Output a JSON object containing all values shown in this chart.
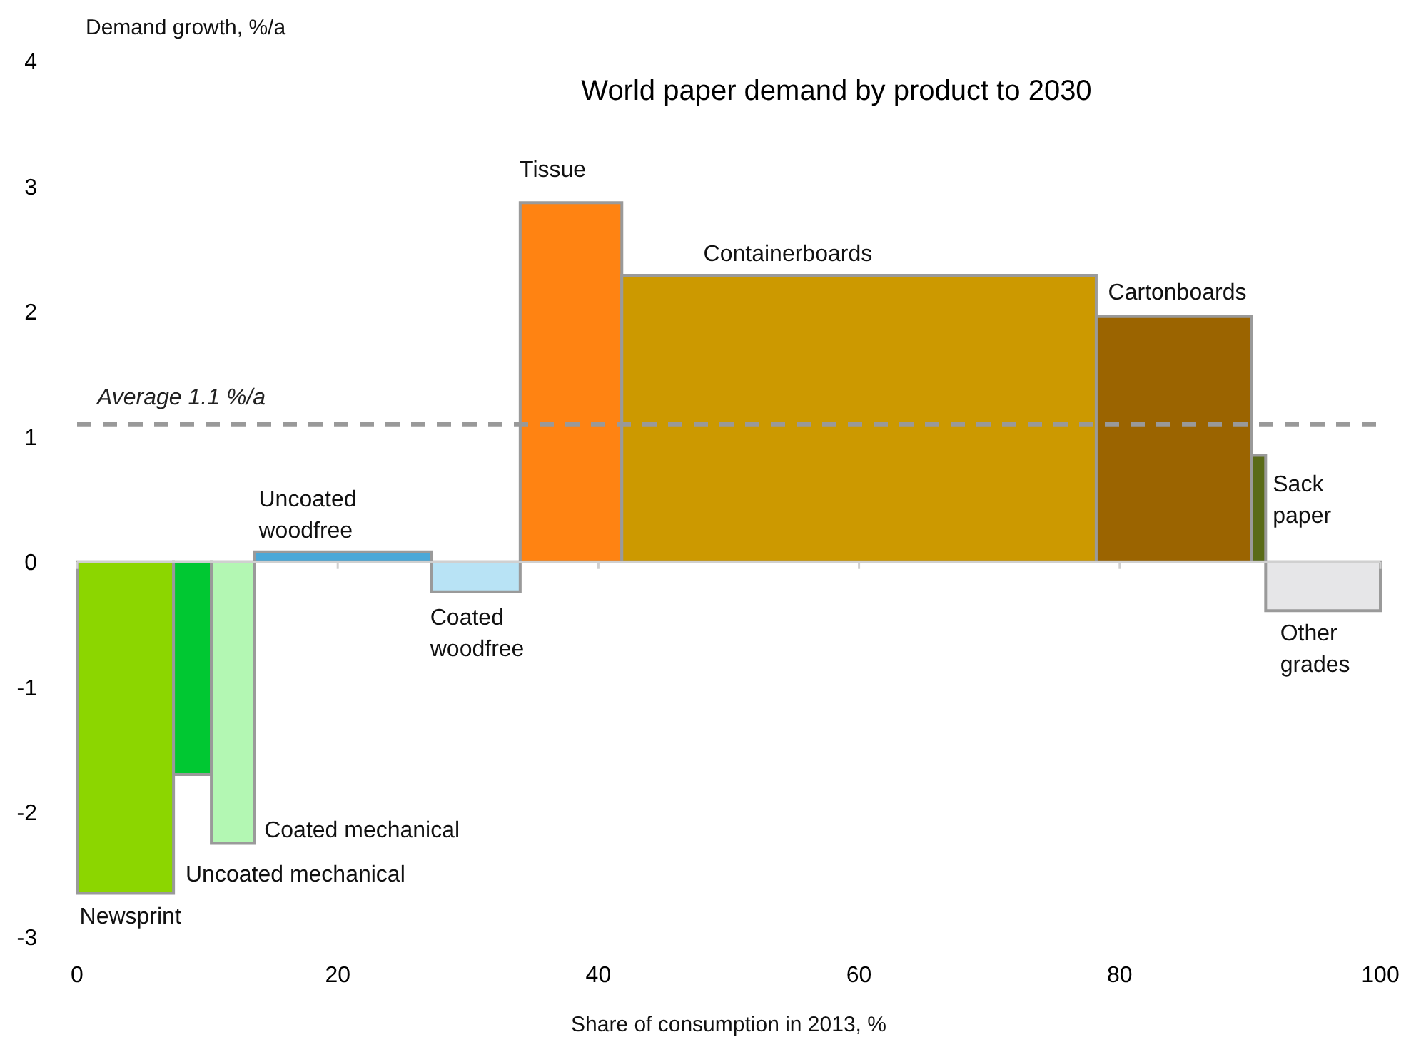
{
  "chart_data": {
    "type": "histogram",
    "title": "World paper demand by product to 2030",
    "xlabel": "Share of consumption in 2013, %",
    "ylabel": "Demand growth, %/a",
    "bins": [
      0,
      7.4,
      10.3,
      13.6,
      27.2,
      34.0,
      41.8,
      78.2,
      90.1,
      91.2,
      100
    ],
    "values": [
      -2.65,
      -1.7,
      -2.25,
      0.08,
      -0.24,
      2.87,
      2.29,
      1.96,
      0.85,
      -0.39
    ],
    "colors": [
      "#8cd600",
      "#00c832",
      "#b3f7b3",
      "#4aa8d8",
      "#b8e3f5",
      "#ff8312",
      "#cc9900",
      "#9b6400",
      "#5a6b18",
      "#e6e6e8"
    ],
    "xlim": [
      0,
      100
    ],
    "xticks": [
      0,
      20,
      40,
      60,
      80,
      100
    ],
    "ylim": [
      -3,
      4
    ],
    "yticks": [
      -3,
      -2,
      -1,
      0,
      1,
      2,
      3,
      4
    ],
    "ref_lines": [
      {
        "axis": "y",
        "value": 1.1,
        "label": "Average 1.1 %/a",
        "color": "#999999",
        "line_style": "dashed"
      }
    ],
    "annotations": [
      {
        "text": "Newsprint",
        "x": 3.7,
        "y": -2.65
      },
      "Uncoated mechanical",
      {
        "text": "Coated mechanical",
        "x": 11.95,
        "y": -2.25
      },
      {
        "text": "Uncoated\nwoodfree",
        "x": 20.4,
        "y": 0.08
      },
      {
        "text": "Coated\nwoodfree",
        "x": 30.6,
        "y": -0.24
      },
      {
        "text": "Tissue",
        "x": 37.9,
        "y": 2.87
      },
      {
        "text": "Containerboards",
        "x": 60,
        "y": 2.29
      },
      {
        "text": "Cartonboards",
        "x": 84.15,
        "y": 1.96
      },
      {
        "text": "Sack\npaper",
        "x": 90.65,
        "y": 0.85
      },
      {
        "text": "Other\ngrades",
        "x": 95.6,
        "y": -0.39
      }
    ]
  }
}
